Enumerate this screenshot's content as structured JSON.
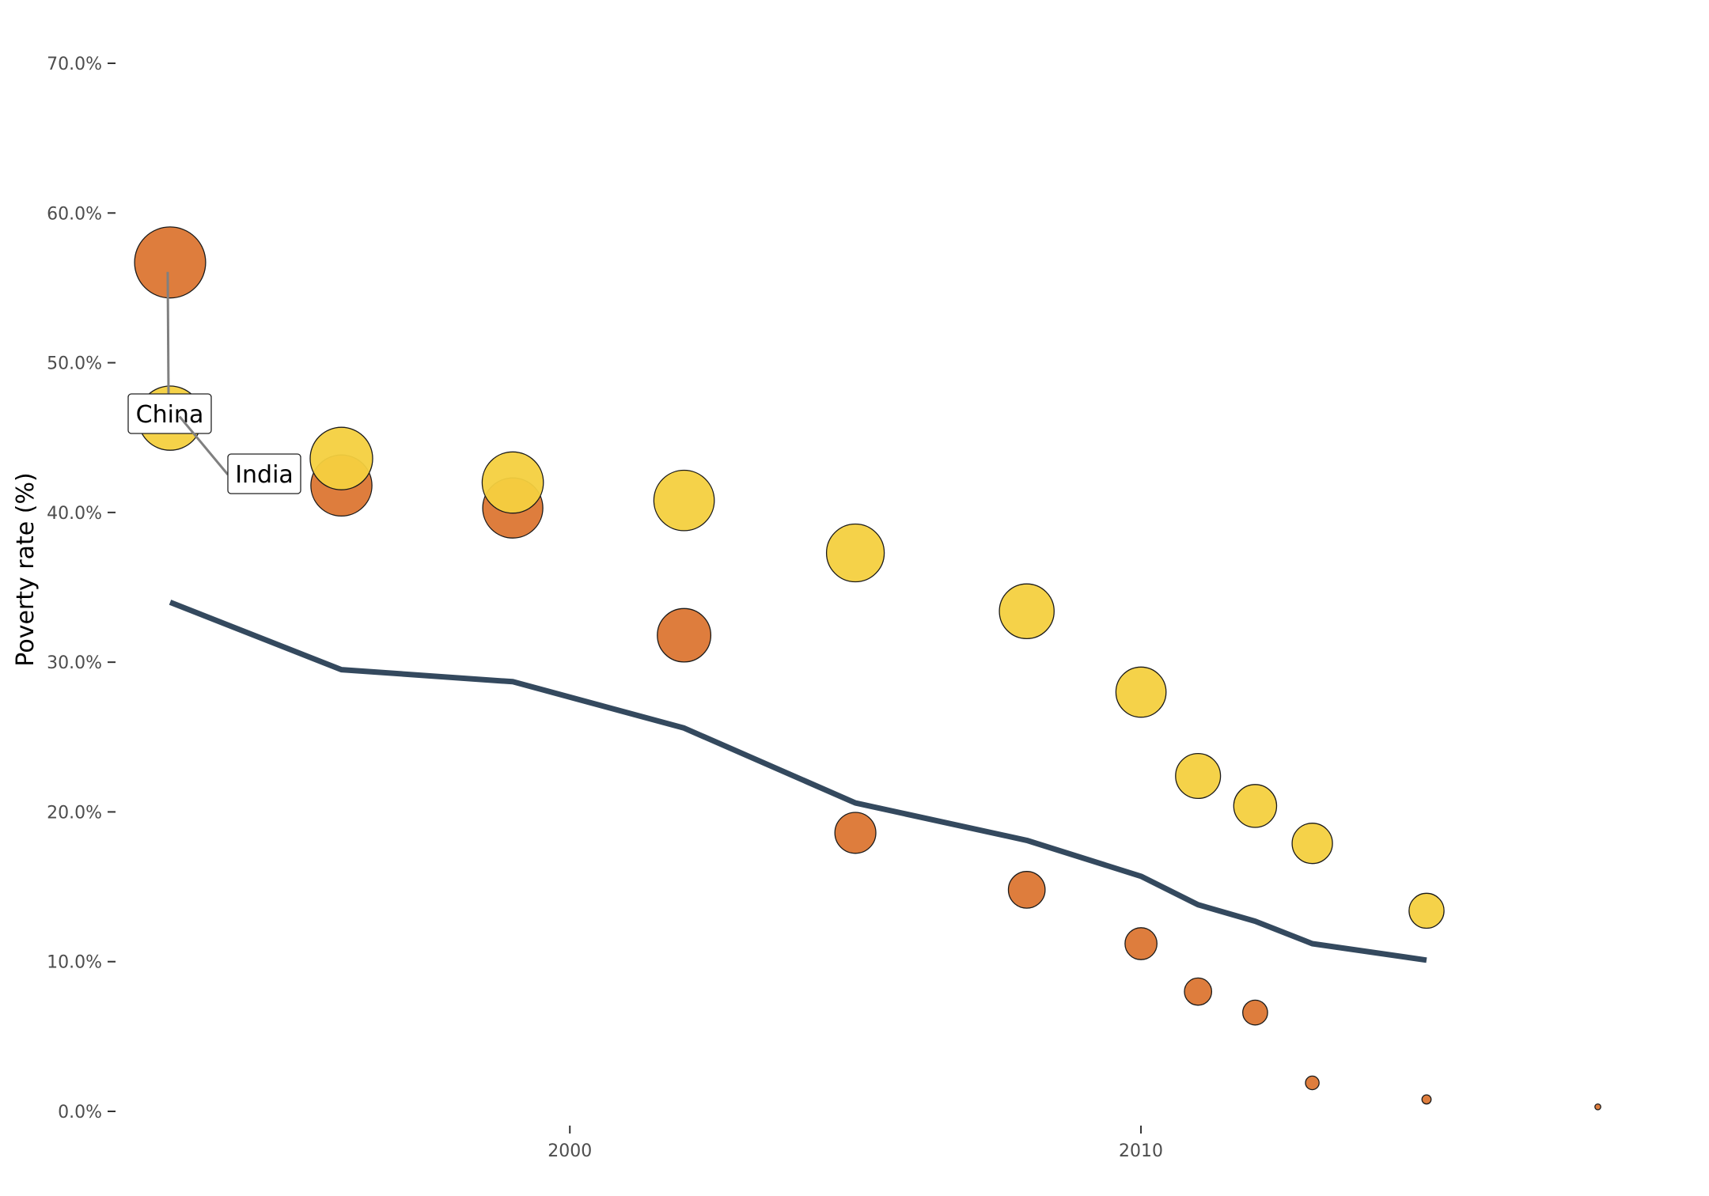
{
  "chart_data": {
    "type": "scatter",
    "title": "",
    "xlabel": "",
    "ylabel": "Poverty rate (%)",
    "xlim": [
      1992.1,
      2019.6
    ],
    "ylim": [
      0,
      0.7
    ],
    "x_ticks": [
      2000,
      2010
    ],
    "x_tick_labels": [
      "2000",
      "2010"
    ],
    "y_ticks": [
      0,
      0.1,
      0.2,
      0.3,
      0.4,
      0.5,
      0.6,
      0.7
    ],
    "y_tick_labels": [
      "0.0%",
      "10.0%",
      "20.0%",
      "30.0%",
      "40.0%",
      "50.0%",
      "60.0%",
      "70.0%"
    ],
    "grid": false,
    "legend": "none",
    "series": [
      {
        "name": "China",
        "kind": "bubble",
        "color": "#DC7633",
        "x": [
          1993,
          1996,
          1999,
          2002,
          2005,
          2008,
          2010,
          2011,
          2012,
          2013,
          2015,
          2018
        ],
        "y": [
          0.567,
          0.418,
          0.403,
          0.318,
          0.186,
          0.148,
          0.112,
          0.08,
          0.066,
          0.019,
          0.008,
          0.003
        ]
      },
      {
        "name": "India",
        "kind": "bubble",
        "color": "#F4D03F",
        "x": [
          1993,
          1996,
          1999,
          2002,
          2005,
          2008,
          2010,
          2011,
          2012,
          2013,
          2015
        ],
        "y": [
          0.463,
          0.436,
          0.42,
          0.408,
          0.373,
          0.334,
          0.28,
          0.224,
          0.204,
          0.179,
          0.134
        ]
      },
      {
        "kind": "line",
        "color": "#34495E",
        "x": [
          1993,
          1996,
          1999,
          2002,
          2005,
          2008,
          2010,
          2011,
          2012,
          2013,
          2015
        ],
        "y": [
          0.34,
          0.295,
          0.287,
          0.256,
          0.206,
          0.181,
          0.157,
          0.138,
          0.127,
          0.112,
          0.101
        ]
      }
    ],
    "annotations": [
      {
        "text": "China",
        "series": "China",
        "x": 1993,
        "y": 0.567
      },
      {
        "text": "India",
        "series": "India",
        "x": 1993,
        "y": 0.463
      }
    ]
  }
}
